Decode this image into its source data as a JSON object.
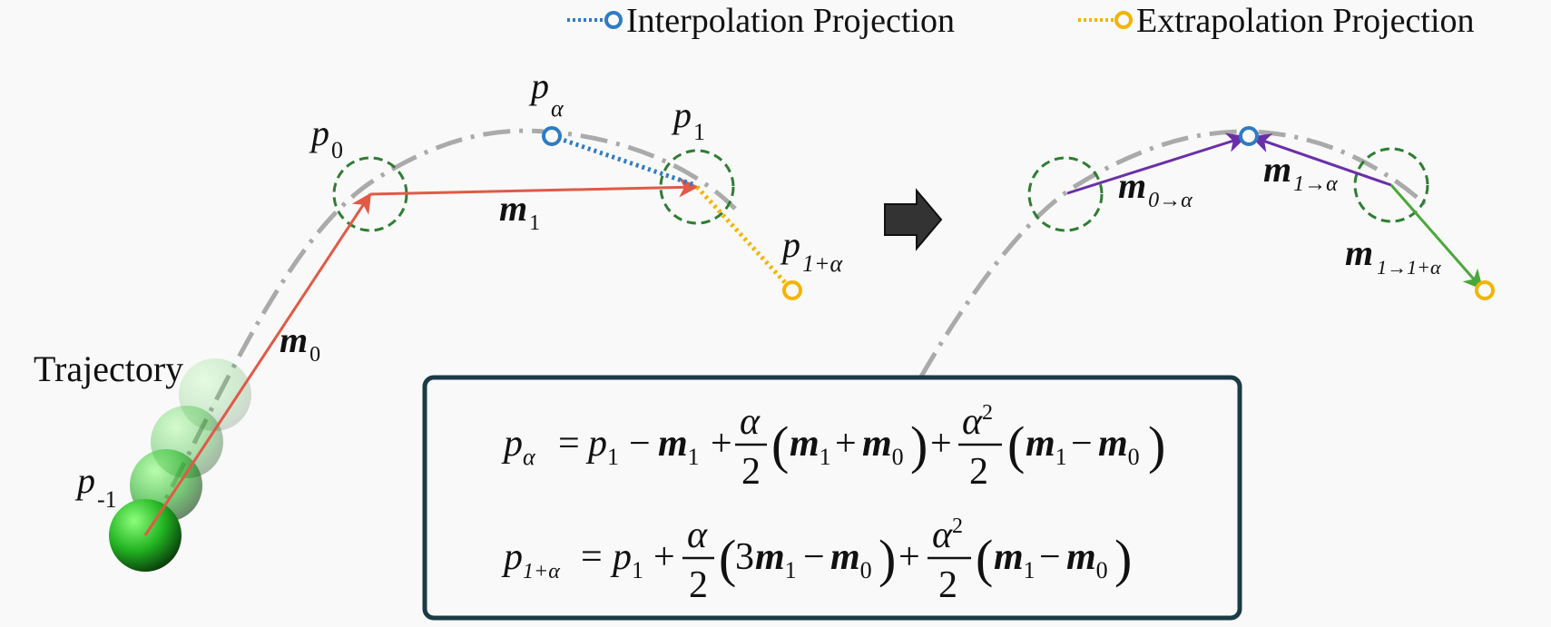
{
  "legend": {
    "items": [
      {
        "label": "Interpolation Projection",
        "color": "#2f7cc1"
      },
      {
        "label": "Extrapolation Projection",
        "color": "#f4b400"
      }
    ]
  },
  "trajectory_label": "Trajectory",
  "points": {
    "p_minus1": {
      "base": "p",
      "sub": "-1"
    },
    "p0": {
      "base": "p",
      "sub": "0"
    },
    "p1": {
      "base": "p",
      "sub": "1"
    },
    "p_alpha": {
      "base": "p",
      "sub": "α"
    },
    "p_1_plus_alpha": {
      "base": "p",
      "sub": "1+α"
    }
  },
  "motion_labels": {
    "m0": {
      "base": "m",
      "sub": "0"
    },
    "m1": {
      "base": "m",
      "sub": "1"
    },
    "m0_to_alpha": {
      "base": "m",
      "sub": "0→α"
    },
    "m1_to_alpha": {
      "base": "m",
      "sub": "1→α"
    },
    "m1_to_1plus_alpha": {
      "base": "m",
      "sub": "1→1+α"
    }
  },
  "formulas": {
    "f1": {
      "lhs_base": "p",
      "lhs_sub": "α",
      "eq": "=",
      "p1_base": "p",
      "p1_sub": "1",
      "minus": "−",
      "m_base": "m",
      "m1_sub": "1",
      "m0_sub": "0",
      "plus": "+",
      "frac1_num": "α",
      "frac1_den": "2",
      "frac2_num": "α",
      "frac2_sup": "2",
      "frac2_den": "2",
      "lparen": "(",
      "rparen": ")"
    },
    "f2": {
      "lhs_base": "p",
      "lhs_sub": "1+α",
      "eq": "=",
      "p1_base": "p",
      "p1_sub": "1",
      "three": "3",
      "minus": "−",
      "m_base": "m",
      "m1_sub": "1",
      "m0_sub": "0",
      "plus": "+",
      "frac1_num": "α",
      "frac1_den": "2",
      "frac2_num": "α",
      "frac2_sup": "2",
      "frac2_den": "2",
      "lparen": "(",
      "rparen": ")"
    }
  },
  "colors": {
    "trajectory": "#aaaaaa",
    "motion": "#e05a47",
    "interp_motion": "#6a2fa8",
    "extrap_motion": "#4aa83a",
    "region_circle": "#2e7d32",
    "formula_border": "#1b3b45",
    "arrow_icon": "#333333"
  }
}
